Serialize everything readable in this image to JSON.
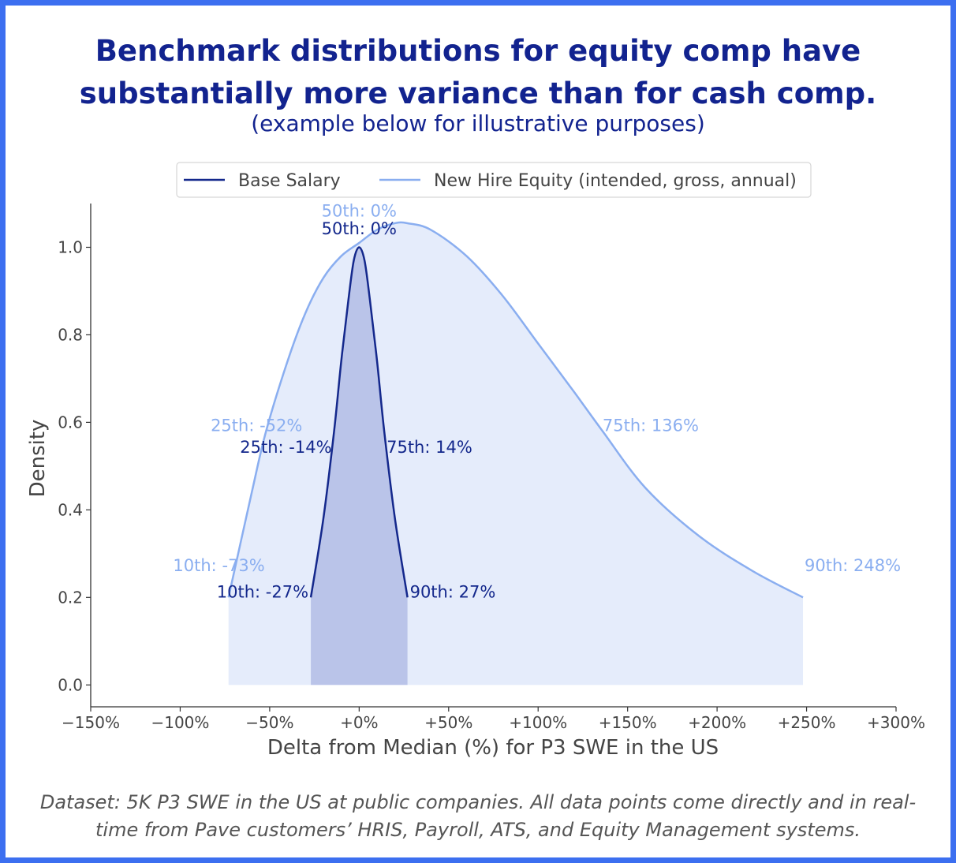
{
  "header": {
    "title_line1": "Benchmark distributions for equity comp have",
    "title_line2": "substantially more variance than for cash comp.",
    "subtitle": "(example below for illustrative purposes)"
  },
  "footer": {
    "line1": "Dataset: 5K P3 SWE in the US at public companies. All data points come directly and in real-",
    "line2": "time from Pave customers’ HRIS, Payroll, ATS, and Equity Management systems."
  },
  "colors": {
    "border": "#3c6ff0",
    "title": "#12238f",
    "base": "#14288c",
    "base_fill": "#b7c2e8",
    "equity": "#8aaef0",
    "equity_fill": "#e5ecfb"
  },
  "chart_data": {
    "type": "area",
    "xlabel": "Delta from Median (%) for P3 SWE in the US",
    "ylabel": "Density",
    "xlim": [
      -150,
      300
    ],
    "ylim": [
      -0.05,
      1.1
    ],
    "x_ticks": [
      -150,
      -100,
      -50,
      0,
      50,
      100,
      150,
      200,
      250,
      300
    ],
    "x_tick_labels": [
      "−150%",
      "−100%",
      "−50%",
      "+0%",
      "+50%",
      "+100%",
      "+150%",
      "+200%",
      "+250%",
      "+300%"
    ],
    "y_ticks": [
      0.0,
      0.2,
      0.4,
      0.6,
      0.8,
      1.0
    ],
    "y_tick_labels": [
      "0.0",
      "0.2",
      "0.4",
      "0.6",
      "0.8",
      "1.0"
    ],
    "legend_position": "top-center",
    "series": [
      {
        "name": "Base Salary",
        "color": "#14288c",
        "x": [
          -27,
          -20,
          -14,
          -10,
          -6,
          -3,
          0,
          3,
          6,
          10,
          14,
          20,
          27
        ],
        "y": [
          0.2,
          0.38,
          0.58,
          0.74,
          0.88,
          0.97,
          1.0,
          0.97,
          0.88,
          0.74,
          0.58,
          0.38,
          0.2
        ],
        "annotations": [
          {
            "label": "10th: -27%",
            "x": -27,
            "y": 0.2
          },
          {
            "label": "25th: -14%",
            "x": -14,
            "y": 0.53
          },
          {
            "label": "50th: 0%",
            "x": 0,
            "y": 1.03
          },
          {
            "label": "75th: 14%",
            "x": 14,
            "y": 0.53
          },
          {
            "label": "90th: 27%",
            "x": 27,
            "y": 0.2
          }
        ]
      },
      {
        "name": "New Hire Equity (intended, gross, annual)",
        "color": "#8aaef0",
        "x": [
          -73,
          -60,
          -52,
          -40,
          -30,
          -20,
          -10,
          0,
          10,
          20,
          27,
          40,
          60,
          80,
          100,
          120,
          136,
          160,
          190,
          220,
          248
        ],
        "y": [
          0.2,
          0.44,
          0.58,
          0.74,
          0.85,
          0.93,
          0.98,
          1.01,
          1.04,
          1.055,
          1.055,
          1.04,
          0.98,
          0.89,
          0.78,
          0.67,
          0.58,
          0.45,
          0.34,
          0.26,
          0.2
        ],
        "annotations": [
          {
            "label": "10th: -73%",
            "x": -73,
            "y": 0.26
          },
          {
            "label": "25th: -52%",
            "x": -52,
            "y": 0.58
          },
          {
            "label": "50th: 0%",
            "x": 0,
            "y": 1.07
          },
          {
            "label": "75th: 136%",
            "x": 136,
            "y": 0.58
          },
          {
            "label": "90th: 248%",
            "x": 248,
            "y": 0.26
          }
        ]
      }
    ]
  }
}
